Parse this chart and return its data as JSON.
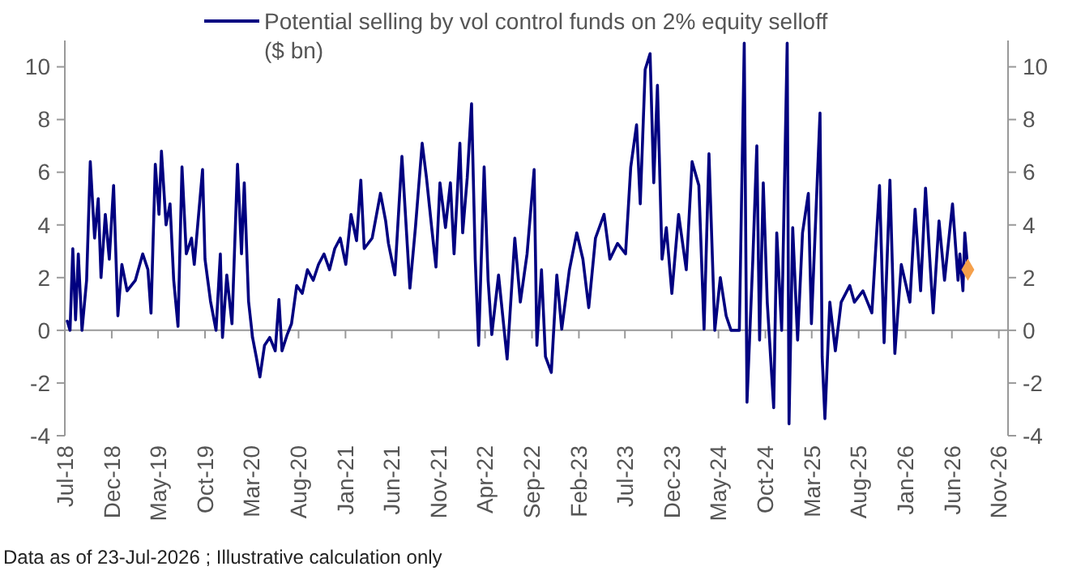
{
  "chart_data": {
    "type": "line",
    "xlim": [
      "2018-07-01",
      "2026-12-01"
    ],
    "xticks": [
      {
        "value": "2018-07-01",
        "label": "Jul-18"
      },
      {
        "value": "2018-12-01",
        "label": "Dec-18"
      },
      {
        "value": "2019-05-01",
        "label": "May-19"
      },
      {
        "value": "2019-10-01",
        "label": "Oct-19"
      },
      {
        "value": "2020-03-01",
        "label": "Mar-20"
      },
      {
        "value": "2020-08-01",
        "label": "Aug-20"
      },
      {
        "value": "2021-01-01",
        "label": "Jan-21"
      },
      {
        "value": "2021-06-01",
        "label": "Jun-21"
      },
      {
        "value": "2021-11-01",
        "label": "Nov-21"
      },
      {
        "value": "2022-04-01",
        "label": "Apr-22"
      },
      {
        "value": "2022-09-01",
        "label": "Sep-22"
      },
      {
        "value": "2023-02-01",
        "label": "Feb-23"
      },
      {
        "value": "2023-07-01",
        "label": "Jul-23"
      },
      {
        "value": "2023-12-01",
        "label": "Dec-23"
      },
      {
        "value": "2024-05-01",
        "label": "May-24"
      },
      {
        "value": "2024-10-01",
        "label": "Oct-24"
      },
      {
        "value": "2025-03-01",
        "label": "Mar-25"
      },
      {
        "value": "2025-08-01",
        "label": "Aug-25"
      },
      {
        "value": "2026-01-01",
        "label": "Jan-26"
      },
      {
        "value": "2026-06-01",
        "label": "Jun-26"
      },
      {
        "value": "2026-11-01",
        "label": "Nov-26"
      }
    ],
    "ylim": [
      -4,
      11
    ],
    "yticks": [
      -4,
      -2,
      0,
      2,
      4,
      6,
      8,
      10
    ],
    "y2lim": [
      -4,
      11
    ],
    "y2ticks": [
      -4,
      -2,
      0,
      2,
      4,
      6,
      8,
      10
    ],
    "legend": "top",
    "line_style": "solid",
    "annotations": [
      "Data as of 23-Jul-2026 ; Illustrative calculation only"
    ],
    "series": [
      {
        "name": "Potential selling by vol control funds on 2% equity selloff ($ bn)",
        "color": "#000080",
        "marker": "none",
        "x": [
          "2018-07-09",
          "2018-07-18",
          "2018-07-27",
          "2018-08-05",
          "2018-08-14",
          "2018-08-26",
          "2018-09-10",
          "2018-09-22",
          "2018-10-06",
          "2018-10-18",
          "2018-10-27",
          "2018-11-10",
          "2018-11-23",
          "2018-12-07",
          "2018-12-21",
          "2019-01-03",
          "2019-01-20",
          "2019-02-16",
          "2019-03-12",
          "2019-03-29",
          "2019-04-08",
          "2019-04-22",
          "2019-05-04",
          "2019-05-12",
          "2019-05-27",
          "2019-06-09",
          "2019-06-21",
          "2019-07-05",
          "2019-07-18",
          "2019-08-01",
          "2019-08-18",
          "2019-08-27",
          "2019-09-23",
          "2019-10-01",
          "2019-10-19",
          "2019-11-06",
          "2019-11-20",
          "2019-11-27",
          "2019-12-11",
          "2019-12-28",
          "2020-01-15",
          "2020-01-28",
          "2020-02-06",
          "2020-02-20",
          "2020-03-04",
          "2020-03-16",
          "2020-03-28",
          "2020-04-12",
          "2020-04-29",
          "2020-05-17",
          "2020-05-29",
          "2020-06-08",
          "2020-06-25",
          "2020-07-09",
          "2020-07-26",
          "2020-08-13",
          "2020-08-30",
          "2020-09-18",
          "2020-10-05",
          "2020-10-23",
          "2020-11-10",
          "2020-11-27",
          "2020-12-15",
          "2021-01-02",
          "2021-01-19",
          "2021-02-06",
          "2021-02-20",
          "2021-03-03",
          "2021-03-29",
          "2021-04-25",
          "2021-05-12",
          "2021-05-21",
          "2021-06-11",
          "2021-07-04",
          "2021-07-30",
          "2021-08-17",
          "2021-09-08",
          "2021-09-22",
          "2021-10-09",
          "2021-10-23",
          "2021-11-05",
          "2021-11-23",
          "2021-12-09",
          "2021-12-21",
          "2022-01-09",
          "2022-01-18",
          "2022-02-02",
          "2022-02-16",
          "2022-02-28",
          "2022-03-11",
          "2022-03-29",
          "2022-04-11",
          "2022-04-23",
          "2022-05-15",
          "2022-06-12",
          "2022-07-07",
          "2022-07-25",
          "2022-08-16",
          "2022-09-08",
          "2022-09-17",
          "2022-10-02",
          "2022-10-15",
          "2022-11-03",
          "2022-11-21",
          "2022-12-07",
          "2023-01-01",
          "2023-01-25",
          "2023-02-14",
          "2023-03-05",
          "2023-03-27",
          "2023-04-24",
          "2023-05-13",
          "2023-06-07",
          "2023-07-03",
          "2023-07-20",
          "2023-08-08",
          "2023-08-20",
          "2023-09-05",
          "2023-09-21",
          "2023-10-03",
          "2023-10-15",
          "2023-10-30",
          "2023-11-13",
          "2023-12-01",
          "2023-12-23",
          "2024-01-17",
          "2024-02-05",
          "2024-02-27",
          "2024-03-15",
          "2024-03-31",
          "2024-04-19",
          "2024-05-07",
          "2024-05-26",
          "2024-06-11",
          "2024-07-08",
          "2024-07-24",
          "2024-08-02",
          "2024-08-21",
          "2024-09-03",
          "2024-09-12",
          "2024-09-24",
          "2024-10-07",
          "2024-10-28",
          "2024-11-07",
          "2024-11-23",
          "2024-12-11",
          "2024-12-17",
          "2024-12-29",
          "2025-01-14",
          "2025-01-30",
          "2025-02-18",
          "2025-02-28",
          "2025-03-28",
          "2025-04-04",
          "2025-04-13",
          "2025-04-29",
          "2025-05-17",
          "2025-06-05",
          "2025-07-03",
          "2025-07-18",
          "2025-08-15",
          "2025-09-13",
          "2025-10-08",
          "2025-10-23",
          "2025-11-11",
          "2025-11-27",
          "2025-12-18",
          "2026-01-15",
          "2026-02-01",
          "2026-02-19",
          "2026-03-07",
          "2026-03-23",
          "2026-04-01",
          "2026-04-20",
          "2026-05-08",
          "2026-06-03",
          "2026-06-21",
          "2026-06-27",
          "2026-07-07",
          "2026-07-13",
          "2026-07-23"
        ],
        "values": [
          0.35,
          0,
          3.1,
          0.4,
          2.9,
          0,
          1.9,
          6.4,
          3.5,
          5.0,
          2.0,
          4.4,
          2.7,
          5.5,
          0.55,
          2.5,
          1.5,
          1.9,
          2.9,
          2.3,
          0.65,
          6.3,
          4.4,
          6.8,
          4.0,
          4.8,
          1.9,
          0.15,
          6.2,
          2.9,
          3.5,
          2.5,
          6.1,
          2.7,
          1.1,
          0,
          2.9,
          -0.27,
          2.1,
          0.25,
          6.3,
          2.9,
          5.6,
          1.1,
          -0.27,
          -1.0,
          -1.77,
          -0.57,
          -0.27,
          -0.78,
          1.17,
          -0.78,
          -0.16,
          0.25,
          1.7,
          1.4,
          2.3,
          1.9,
          2.5,
          2.9,
          2.3,
          3.1,
          3.5,
          2.5,
          4.4,
          3.4,
          5.7,
          3.1,
          3.5,
          5.2,
          4.15,
          3.3,
          2.1,
          6.6,
          1.6,
          3.9,
          7.1,
          5.8,
          3.9,
          2.4,
          5.6,
          3.9,
          5.6,
          2.9,
          7.1,
          3.7,
          5.8,
          8.6,
          2.7,
          -0.57,
          6.2,
          1.9,
          -0.16,
          2.1,
          -1.09,
          3.5,
          1.07,
          2.9,
          6.1,
          -0.57,
          2.3,
          -1.0,
          -1.6,
          2.1,
          0.04,
          2.3,
          3.7,
          2.7,
          0.86,
          3.5,
          4.4,
          2.7,
          3.3,
          2.9,
          6.2,
          7.8,
          4.8,
          9.9,
          10.5,
          5.6,
          9.3,
          2.7,
          3.9,
          1.4,
          4.4,
          2.3,
          6.4,
          5.5,
          0.04,
          6.7,
          0,
          2.0,
          0.55,
          0,
          0,
          10.9,
          -2.73,
          2.7,
          7.0,
          -0.37,
          5.6,
          1.07,
          -2.94,
          3.7,
          0,
          10.9,
          -3.55,
          3.9,
          -0.37,
          3.7,
          5.2,
          0.25,
          8.25,
          -1.0,
          -3.35,
          1.07,
          -0.78,
          1.07,
          1.7,
          1.07,
          1.5,
          0.66,
          5.5,
          -0.47,
          5.7,
          -0.88,
          2.5,
          1.07,
          4.6,
          1.5,
          5.4,
          2.3,
          0.66,
          4.15,
          1.9,
          4.8,
          1.9,
          2.9,
          1.5,
          3.7,
          2.3
        ]
      },
      {
        "type": "scatter",
        "color": "#f5a04b",
        "marker": "diamond",
        "x": [
          "2026-07-23"
        ],
        "values": [
          2.3
        ]
      }
    ]
  }
}
